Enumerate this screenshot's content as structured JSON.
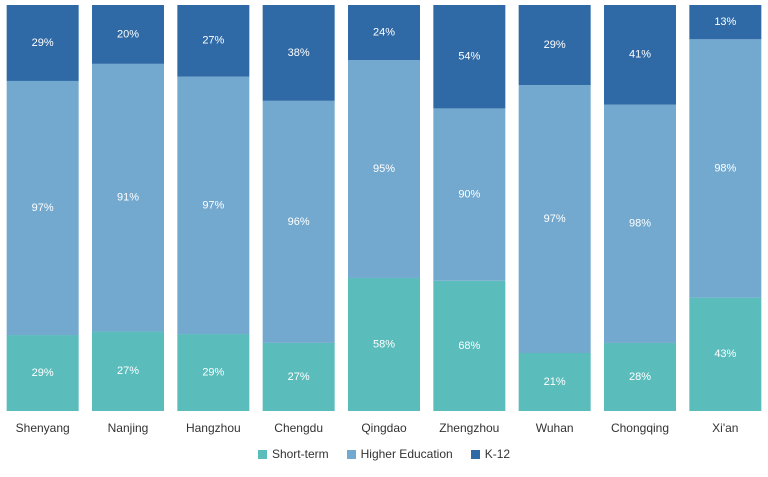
{
  "chart_data": {
    "type": "bar",
    "stacked": true,
    "normalized": true,
    "categories": [
      "Shenyang",
      "Nanjing",
      "Hangzhou",
      "Chengdu",
      "Qingdao",
      "Zhengzhou",
      "Wuhan",
      "Chongqing",
      "Xi'an"
    ],
    "series": [
      {
        "name": "Short-term",
        "color": "#5bbcbc",
        "values": [
          29,
          27,
          29,
          27,
          58,
          68,
          21,
          28,
          43
        ]
      },
      {
        "name": "Higher Education",
        "color": "#73a9cf",
        "values": [
          97,
          91,
          97,
          96,
          95,
          90,
          97,
          98,
          98
        ]
      },
      {
        "name": "K-12",
        "color": "#2f6aa6",
        "values": [
          29,
          20,
          27,
          38,
          24,
          54,
          29,
          41,
          13
        ]
      }
    ],
    "value_suffix": "%",
    "legend_position": "bottom-center",
    "title": "",
    "xlabel": "",
    "ylabel": ""
  },
  "legend": {
    "items": [
      {
        "label": "Short-term",
        "color": "#5bbcbc"
      },
      {
        "label": "Higher Education",
        "color": "#73a9cf"
      },
      {
        "label": "K-12",
        "color": "#2f6aa6"
      }
    ]
  }
}
